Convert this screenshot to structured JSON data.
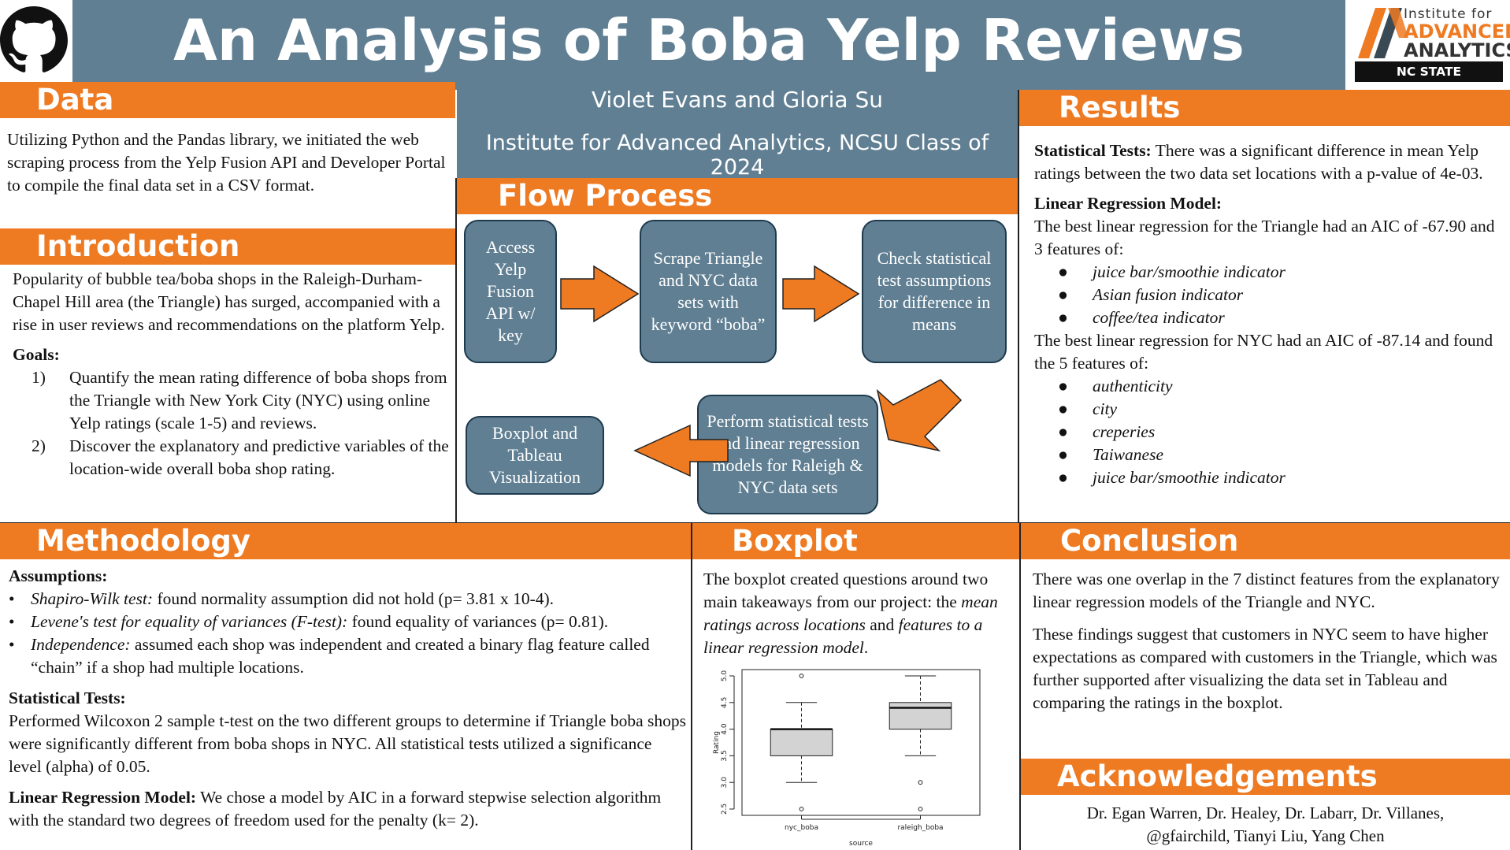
{
  "header": {
    "title": "An Analysis of Boba Yelp Reviews",
    "authors": "Violet Evans and Gloria Su",
    "affiliation": "Institute for Advanced Analytics, NCSU Class of 2024",
    "github_icon": "github-icon",
    "logo": {
      "line1": "Institute for",
      "line2": "ADVANCED",
      "line3": "ANALYTICS",
      "line4": "NC STATE UNIVERSITY"
    }
  },
  "colors": {
    "accent": "#ee7a22",
    "header_blue": "#607f93",
    "box_blue": "#607f93"
  },
  "data_section": {
    "heading": "Data",
    "text": "Utilizing Python and the Pandas library, we initiated the web scraping process from the Yelp Fusion API and Developer Portal to compile the final data set in a CSV format."
  },
  "introduction": {
    "heading": "Introduction",
    "text": "Popularity of bubble tea/boba shops in the Raleigh-Durham-Chapel Hill area (the Triangle) has surged, accompanied with a rise in user reviews and recommendations on the platform Yelp.",
    "goals_label": "Goals:",
    "goals": [
      {
        "num": "1)",
        "text": "Quantify the mean rating difference of boba shops from the Triangle with New York City (NYC) using online Yelp ratings (scale 1-5) and reviews."
      },
      {
        "num": "2)",
        "text": "Discover the explanatory and predictive variables of the location-wide overall boba shop rating."
      }
    ]
  },
  "flow": {
    "heading": "Flow Process",
    "steps": [
      "Access Yelp Fusion API w/ key",
      "Scrape Triangle and NYC data sets with keyword “boba”",
      "Check statistical test assumptions for difference in means",
      "Perform statistical tests and linear regression models for Raleigh & NYC data sets",
      "Boxplot and Tableau Visualization"
    ]
  },
  "results": {
    "heading": "Results",
    "stat_label": "Statistical Tests:",
    "stat_text": " There was a significant difference in mean Yelp ratings between the two data set locations with a p-value of 4e-03.",
    "lr_label": "Linear Regression Model:",
    "tri_text": "The best linear regression for the Triangle had an AIC of -67.90 and 3 features of:",
    "tri_features": [
      "juice bar/smoothie indicator",
      "Asian fusion indicator",
      "coffee/tea indicator"
    ],
    "nyc_text": "The best linear regression for NYC had an AIC of -87.14 and found the 5 features of:",
    "nyc_features": [
      "authenticity",
      "city",
      "creperies",
      "Taiwanese",
      "juice bar/smoothie indicator"
    ],
    "bullet": "●"
  },
  "methodology": {
    "heading": "Methodology",
    "assumptions_label": "Assumptions:",
    "assumptions": [
      {
        "em": "Shapiro-Wilk test:",
        "text": " found normality assumption did not hold (p= 3.81 x 10-4)."
      },
      {
        "em": "Levene's test for equality of variances (F-test):",
        "text": " found equality of variances (p= 0.81)."
      },
      {
        "em": "Independence:",
        "text": " assumed each shop was independent and created a binary flag feature called “chain” if a shop had multiple locations."
      }
    ],
    "bullet": "•",
    "stat_label": "Statistical Tests:",
    "stat_text": "Performed Wilcoxon 2 sample t-test on the two different groups to determine if Triangle boba shops were significantly different from boba shops in NYC. All statistical tests utilized a significance level (alpha) of 0.05.",
    "lr_label": "Linear Regression Model:",
    "lr_text": " We chose a model by AIC in a forward stepwise selection algorithm with the standard two degrees of freedom used for the penalty (k= 2)."
  },
  "boxplot": {
    "heading": "Boxplot",
    "text_a": "The boxplot created questions around two main takeaways from our project: the ",
    "text_em1": "mean ratings across locations",
    "text_b": " and ",
    "text_em2": "features to a linear regression model",
    "text_c": "."
  },
  "chart_data": {
    "type": "boxplot",
    "xlabel": "source",
    "ylabel": "Rating",
    "ylim": [
      2.5,
      5.0
    ],
    "yticks": [
      "2.5",
      "3.0",
      "3.5",
      "4.0",
      "4.5",
      "5.0"
    ],
    "categories": [
      "nyc_boba",
      "raleigh_boba"
    ],
    "series": [
      {
        "name": "nyc_boba",
        "min": 3.0,
        "q1": 3.5,
        "median": 4.0,
        "q3": 4.0,
        "max": 4.5,
        "outliers": [
          5.0,
          2.5
        ]
      },
      {
        "name": "raleigh_boba",
        "min": 3.5,
        "q1": 4.0,
        "median": 4.4,
        "q3": 4.5,
        "max": 5.0,
        "outliers": [
          3.0,
          2.5
        ]
      }
    ]
  },
  "conclusion": {
    "heading": "Conclusion",
    "p1": "There was one overlap in the 7 distinct features from the explanatory linear regression models of the Triangle and NYC.",
    "p2": "These findings suggest that customers in NYC seem to have higher expectations as compared with customers in the Triangle, which was further supported after visualizing the data set in Tableau and comparing the ratings in the boxplot."
  },
  "acknowledgements": {
    "heading": "Acknowledgements",
    "line1": "Dr. Egan Warren, Dr. Healey, Dr. Labarr, Dr. Villanes,",
    "line2": "@gfairchild, Tianyi Liu, Yang Chen"
  }
}
